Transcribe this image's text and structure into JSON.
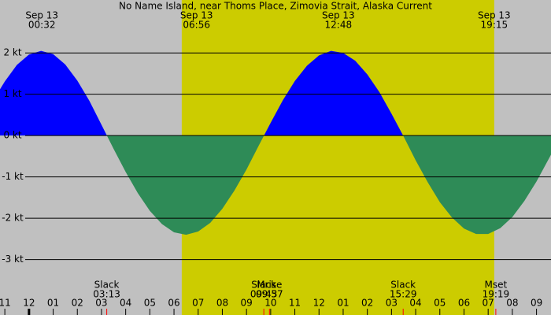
{
  "chart_data": {
    "type": "area",
    "title": "No Name Island, near Thoms Place, Zimovia Strait, Alaska Current",
    "x": [
      -1.2,
      -1,
      -0.5,
      0,
      0.5,
      1,
      1.5,
      2,
      2.5,
      3,
      3.5,
      4,
      4.5,
      5,
      5.5,
      6,
      6.5,
      7,
      7.5,
      8,
      8.5,
      9,
      9.5,
      10,
      10.5,
      11,
      11.5,
      12,
      12.5,
      13,
      13.5,
      14,
      14.5,
      15,
      15.5,
      16,
      16.5,
      17,
      17.5,
      18,
      18.5,
      19,
      19.5,
      20,
      20.5,
      21,
      21.5,
      21.6
    ],
    "values": [
      1.12,
      1.31,
      1.71,
      1.96,
      2.05,
      1.97,
      1.72,
      1.33,
      0.84,
      0.26,
      -0.32,
      -0.88,
      -1.39,
      -1.82,
      -2.14,
      -2.34,
      -2.4,
      -2.32,
      -2.11,
      -1.77,
      -1.33,
      -0.82,
      -0.25,
      0.31,
      0.85,
      1.32,
      1.69,
      1.94,
      2.05,
      2.0,
      1.81,
      1.48,
      1.05,
      0.53,
      -0.02,
      -0.6,
      -1.13,
      -1.61,
      -1.98,
      -2.25,
      -2.38,
      -2.38,
      -2.24,
      -1.97,
      -1.58,
      -1.11,
      -0.57,
      -0.46
    ],
    "flood_color": "#0000ff",
    "ebb_color": "#2e8b57",
    "night_color": "#c0c0c0",
    "day_color": "#cccc00",
    "daylight": {
      "start": 6.32,
      "end": 19.25
    },
    "xlim": [
      -1.2,
      21.6
    ],
    "ylim": [
      -4.34,
      3.28
    ],
    "xticks": [
      {
        "value": -1,
        "label": "11"
      },
      {
        "value": 0,
        "label": "12"
      },
      {
        "value": 1,
        "label": "01"
      },
      {
        "value": 2,
        "label": "02"
      },
      {
        "value": 3,
        "label": "03"
      },
      {
        "value": 4,
        "label": "04"
      },
      {
        "value": 5,
        "label": "05"
      },
      {
        "value": 6,
        "label": "06"
      },
      {
        "value": 7,
        "label": "07"
      },
      {
        "value": 8,
        "label": "08"
      },
      {
        "value": 9,
        "label": "09"
      },
      {
        "value": 10,
        "label": "10"
      },
      {
        "value": 11,
        "label": "11"
      },
      {
        "value": 12,
        "label": "12"
      },
      {
        "value": 13,
        "label": "01"
      },
      {
        "value": 14,
        "label": "02"
      },
      {
        "value": 15,
        "label": "03"
      },
      {
        "value": 16,
        "label": "04"
      },
      {
        "value": 17,
        "label": "05"
      },
      {
        "value": 18,
        "label": "06"
      },
      {
        "value": 19,
        "label": "07"
      },
      {
        "value": 20,
        "label": "08"
      },
      {
        "value": 21,
        "label": "09"
      }
    ],
    "yticks": [
      {
        "value": 2,
        "label": "2 kt"
      },
      {
        "value": 1,
        "label": "1 kt"
      },
      {
        "value": 0,
        "label": "0 kt"
      },
      {
        "value": -1,
        "label": "-1 kt"
      },
      {
        "value": -2,
        "label": "-2 kt"
      },
      {
        "value": -3,
        "label": "-3 kt"
      }
    ],
    "top_labels": [
      {
        "date": "Sep 13",
        "time": "00:32"
      },
      {
        "date": "Sep 13",
        "time": "06:56"
      },
      {
        "date": "Sep 13",
        "time": "12:48"
      },
      {
        "date": "Sep 13",
        "time": "19:15"
      }
    ],
    "events": [
      {
        "label": "Slack",
        "time": "03:13"
      },
      {
        "label": "Slack",
        "time": "09:43"
      },
      {
        "label": "Mrise",
        "time": "09:57"
      },
      {
        "label": "Slack",
        "time": "15:29"
      },
      {
        "label": "Mset",
        "time": "19:19"
      }
    ]
  }
}
